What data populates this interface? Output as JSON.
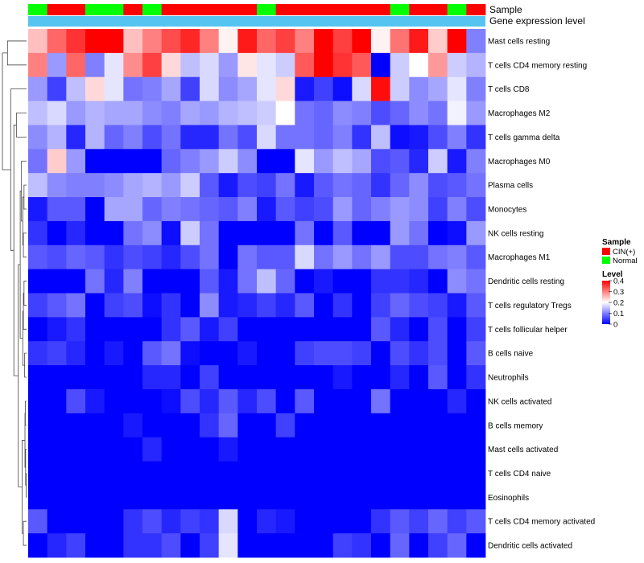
{
  "chart_data": {
    "type": "heatmap",
    "title": "",
    "annotation_tracks": [
      {
        "name": "Sample",
        "label": "Sample"
      },
      {
        "name": "Gene expression level",
        "label": "Gene expression level"
      }
    ],
    "sample_groups": [
      "N",
      "C",
      "C",
      "N",
      "N",
      "C",
      "N",
      "C",
      "C",
      "C",
      "C",
      "C",
      "N",
      "C",
      "C",
      "C",
      "C",
      "C",
      "C",
      "N",
      "C",
      "C",
      "N",
      "C"
    ],
    "rows": [
      "Mast cells resting",
      "T cells CD4 memory resting",
      "T cells CD8",
      "Macrophages M2",
      "T cells gamma delta",
      "Macrophages M0",
      "Plasma cells",
      "Monocytes",
      "NK cells resting",
      "Macrophages M1",
      "Dendritic cells resting",
      "T cells regulatory  Tregs",
      "T cells follicular helper",
      "B cells naive",
      "Neutrophils",
      "NK cells activated",
      "B cells memory",
      "Mast cells activated",
      "T cells CD4 naive",
      "Eosinophils",
      "T cells CD4 memory activated",
      "Dendritic cells activated"
    ],
    "values": [
      [
        0.25,
        0.32,
        0.36,
        0.4,
        0.4,
        0.25,
        0.3,
        0.34,
        0.37,
        0.3,
        0.21,
        0.38,
        0.32,
        0.35,
        0.3,
        0.4,
        0.35,
        0.4,
        0.21,
        0.31,
        0.38,
        0.24,
        0.4,
        0.1
      ],
      [
        0.3,
        0.12,
        0.32,
        0.1,
        0.18,
        0.29,
        0.35,
        0.23,
        0.15,
        0.17,
        0.12,
        0.22,
        0.18,
        0.16,
        0.33,
        0.4,
        0.36,
        0.33,
        0.0,
        0.16,
        0.2,
        0.28,
        0.16,
        0.14
      ],
      [
        0.12,
        0.05,
        0.15,
        0.23,
        0.18,
        0.09,
        0.1,
        0.13,
        0.05,
        0.17,
        0.11,
        0.13,
        0.18,
        0.23,
        0.02,
        0.05,
        0.01,
        0.17,
        0.39,
        0.16,
        0.11,
        0.13,
        0.18,
        0.1
      ],
      [
        0.15,
        0.17,
        0.12,
        0.14,
        0.13,
        0.13,
        0.11,
        0.1,
        0.13,
        0.12,
        0.14,
        0.15,
        0.16,
        0.2,
        0.09,
        0.08,
        0.11,
        0.1,
        0.06,
        0.08,
        0.11,
        0.09,
        0.19,
        0.12
      ],
      [
        0.11,
        0.14,
        0.03,
        0.14,
        0.08,
        0.1,
        0.06,
        0.09,
        0.03,
        0.03,
        0.09,
        0.06,
        0.17,
        0.09,
        0.09,
        0.08,
        0.1,
        0.04,
        0.15,
        0.01,
        0.02,
        0.06,
        0.1,
        0.04
      ],
      [
        0.09,
        0.24,
        0.12,
        0.0,
        0.0,
        0.0,
        0.0,
        0.08,
        0.1,
        0.12,
        0.16,
        0.11,
        0.0,
        0.0,
        0.18,
        0.12,
        0.15,
        0.13,
        0.06,
        0.07,
        0.03,
        0.16,
        0.02,
        0.1
      ],
      [
        0.15,
        0.11,
        0.1,
        0.1,
        0.11,
        0.13,
        0.14,
        0.12,
        0.16,
        0.07,
        0.02,
        0.06,
        0.05,
        0.09,
        0.02,
        0.07,
        0.09,
        0.08,
        0.04,
        0.08,
        0.11,
        0.06,
        0.07,
        0.09
      ],
      [
        0.02,
        0.07,
        0.07,
        0.0,
        0.13,
        0.13,
        0.08,
        0.1,
        0.09,
        0.08,
        0.07,
        0.1,
        0.02,
        0.07,
        0.05,
        0.06,
        0.12,
        0.08,
        0.1,
        0.12,
        0.11,
        0.05,
        0.1,
        0.06
      ],
      [
        0.04,
        0.0,
        0.03,
        0.0,
        0.0,
        0.09,
        0.11,
        0.01,
        0.16,
        0.09,
        0.0,
        0.0,
        0.0,
        0.0,
        0.09,
        0.0,
        0.07,
        0.0,
        0.0,
        0.12,
        0.09,
        0.0,
        0.01,
        0.12
      ],
      [
        0.07,
        0.06,
        0.08,
        0.07,
        0.04,
        0.06,
        0.05,
        0.03,
        0.06,
        0.09,
        0.0,
        0.09,
        0.07,
        0.07,
        0.17,
        0.09,
        0.12,
        0.09,
        0.12,
        0.06,
        0.06,
        0.09,
        0.1,
        0.07
      ],
      [
        0.0,
        0.0,
        0.0,
        0.09,
        0.03,
        0.1,
        0.0,
        0.0,
        0.0,
        0.07,
        0.02,
        0.09,
        0.15,
        0.08,
        0.0,
        0.02,
        0.0,
        0.0,
        0.04,
        0.04,
        0.03,
        0.0,
        0.11,
        0.09
      ],
      [
        0.05,
        0.07,
        0.09,
        0.0,
        0.05,
        0.06,
        0.01,
        0.04,
        0.0,
        0.11,
        0.02,
        0.03,
        0.05,
        0.03,
        0.07,
        0.0,
        0.04,
        0.0,
        0.05,
        0.08,
        0.06,
        0.05,
        0.02,
        0.07
      ],
      [
        0.0,
        0.02,
        0.04,
        0.0,
        0.0,
        0.0,
        0.0,
        0.04,
        0.07,
        0.02,
        0.05,
        0.0,
        0.0,
        0.0,
        0.0,
        0.0,
        0.0,
        0.0,
        0.07,
        0.03,
        0.0,
        0.06,
        0.0,
        0.05
      ],
      [
        0.04,
        0.05,
        0.03,
        0.0,
        0.02,
        0.0,
        0.07,
        0.09,
        0.01,
        0.0,
        0.0,
        0.02,
        0.0,
        0.0,
        0.05,
        0.06,
        0.06,
        0.05,
        0.0,
        0.06,
        0.04,
        0.06,
        0.0,
        0.07
      ],
      [
        0.0,
        0.0,
        0.0,
        0.0,
        0.0,
        0.0,
        0.03,
        0.03,
        0.0,
        0.05,
        0.0,
        0.0,
        0.0,
        0.0,
        0.0,
        0.0,
        0.02,
        0.0,
        0.0,
        0.03,
        0.0,
        0.07,
        0.0,
        0.04
      ],
      [
        0.0,
        0.0,
        0.06,
        0.02,
        0.0,
        0.0,
        0.0,
        0.01,
        0.06,
        0.03,
        0.07,
        0.03,
        0.06,
        0.0,
        0.07,
        0.0,
        0.0,
        0.0,
        0.09,
        0.0,
        0.0,
        0.0,
        0.03,
        0.0
      ],
      [
        0.0,
        0.0,
        0.0,
        0.0,
        0.0,
        0.02,
        0.0,
        0.0,
        0.0,
        0.04,
        0.08,
        0.0,
        0.0,
        0.05,
        0.0,
        0.0,
        0.0,
        0.0,
        0.0,
        0.0,
        0.0,
        0.0,
        0.0,
        0.0
      ],
      [
        0.0,
        0.0,
        0.0,
        0.0,
        0.0,
        0.0,
        0.03,
        0.0,
        0.0,
        0.0,
        0.02,
        0.0,
        0.0,
        0.0,
        0.0,
        0.0,
        0.0,
        0.0,
        0.0,
        0.0,
        0.0,
        0.0,
        0.0,
        0.0
      ],
      [
        0.0,
        0.0,
        0.0,
        0.0,
        0.0,
        0.0,
        0.0,
        0.0,
        0.0,
        0.0,
        0.0,
        0.0,
        0.0,
        0.0,
        0.0,
        0.0,
        0.0,
        0.0,
        0.0,
        0.0,
        0.0,
        0.0,
        0.0,
        0.0
      ],
      [
        0.0,
        0.0,
        0.0,
        0.0,
        0.0,
        0.0,
        0.0,
        0.0,
        0.0,
        0.0,
        0.0,
        0.0,
        0.0,
        0.0,
        0.0,
        0.0,
        0.0,
        0.0,
        0.0,
        0.0,
        0.0,
        0.0,
        0.0,
        0.0
      ],
      [
        0.07,
        0.0,
        0.0,
        0.0,
        0.0,
        0.04,
        0.06,
        0.03,
        0.05,
        0.04,
        0.17,
        0.0,
        0.03,
        0.02,
        0.0,
        0.0,
        0.0,
        0.0,
        0.04,
        0.07,
        0.05,
        0.08,
        0.05,
        0.07
      ],
      [
        0.0,
        0.03,
        0.05,
        0.0,
        0.0,
        0.04,
        0.04,
        0.06,
        0.0,
        0.05,
        0.18,
        0.0,
        0.0,
        0.0,
        0.0,
        0.0,
        0.05,
        0.04,
        0.0,
        0.08,
        0.0,
        0.05,
        0.08,
        0.0
      ]
    ],
    "color_scale": {
      "min": 0,
      "max": 0.4,
      "low": "#0000ff",
      "mid": "#ffffff",
      "high": "#ff0000",
      "mid_value": 0.2
    },
    "legends": {
      "sample": {
        "title": "Sample",
        "entries": [
          {
            "key": "C",
            "label": "CIN(+)",
            "color": "#ff0000"
          },
          {
            "key": "N",
            "label": "Normal",
            "color": "#00ff00"
          }
        ]
      },
      "level": {
        "title": "Level",
        "ticks": [
          "0.4",
          "0.3",
          "0.2",
          "0.1",
          "0"
        ],
        "tick_values": [
          0.4,
          0.3,
          0.2,
          0.1,
          0
        ]
      }
    },
    "gene_expression_color": "#56c4f0",
    "clustering": {
      "row_dendrogram": true,
      "row_linkage": [
        [
          6,
          7,
          0.04
        ],
        [
          8,
          9,
          0.05
        ],
        [
          -1,
          -2,
          0.06
        ],
        [
          5,
          -3,
          0.08
        ],
        [
          10,
          11,
          0.04
        ],
        [
          13,
          14,
          0.03
        ],
        [
          12,
          -5,
          0.05
        ],
        [
          -6,
          -7,
          0.06
        ],
        [
          15,
          16,
          0.02
        ],
        [
          18,
          19,
          0.005
        ],
        [
          17,
          -10,
          0.015
        ],
        [
          -9,
          -11,
          0.025
        ],
        [
          20,
          21,
          0.05
        ],
        [
          -12,
          -13,
          0.07
        ],
        [
          -4,
          -8,
          0.1
        ],
        [
          -15,
          -14,
          0.13
        ],
        [
          3,
          4,
          0.16
        ],
        [
          -16,
          -17,
          0.2
        ],
        [
          2,
          -18,
          0.25
        ],
        [
          0,
          1,
          0.3
        ],
        [
          -19,
          -20,
          0.38
        ]
      ]
    }
  }
}
